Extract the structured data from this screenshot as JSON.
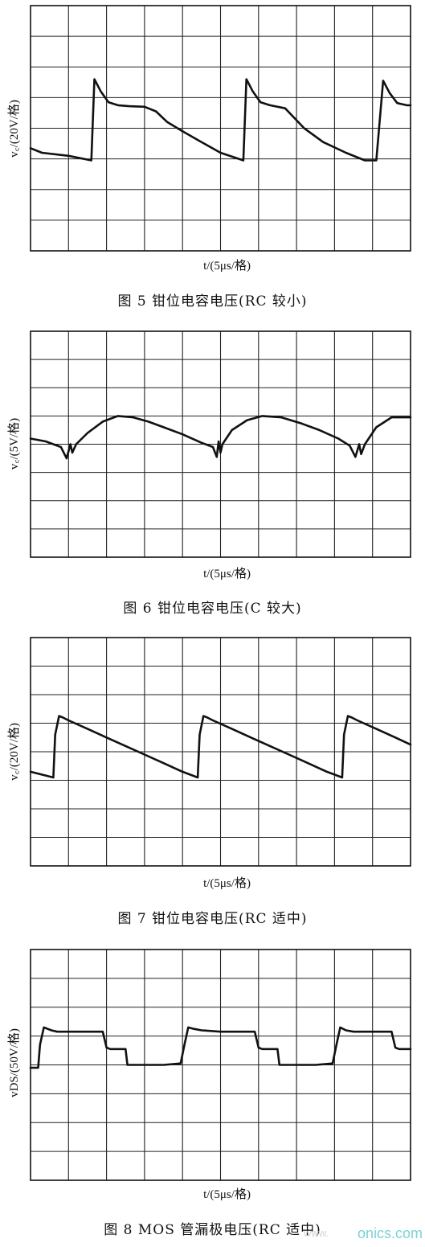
{
  "chart_data": [
    {
      "type": "line",
      "ylabel": "v꜀/(20V/格)",
      "xlabel": "t/(5μs/格)",
      "caption": "图 5    钳位电容电压(RC 较小)",
      "grid_divisions": {
        "x": 10,
        "y": 8
      },
      "series": [
        {
          "x": [
            0.0,
            0.3,
            1.0,
            1.6,
            1.68,
            1.85,
            2.05,
            2.3,
            2.6,
            3.0,
            3.3,
            3.6,
            4.0,
            4.5,
            5.0,
            5.6,
            5.68,
            5.85,
            6.05,
            6.3,
            6.7,
            7.2,
            7.7,
            8.3,
            8.8,
            9.1,
            9.28,
            9.45,
            9.65,
            9.9,
            10.0
          ],
          "y": [
            3.35,
            3.2,
            3.1,
            2.95,
            5.6,
            5.2,
            4.85,
            4.75,
            4.72,
            4.7,
            4.55,
            4.2,
            3.9,
            3.55,
            3.2,
            2.95,
            5.6,
            5.2,
            4.85,
            4.75,
            4.65,
            4.0,
            3.55,
            3.2,
            2.95,
            2.95,
            5.55,
            5.15,
            4.82,
            4.75,
            4.75
          ]
        }
      ]
    },
    {
      "type": "line",
      "ylabel": "v꜀/(5V/格)",
      "xlabel": "t/(5μs/格)",
      "caption": "图 6    钳位电容电压(C 较大)",
      "grid_divisions": {
        "x": 10,
        "y": 8
      },
      "series": [
        {
          "x": [
            0.0,
            0.4,
            0.8,
            0.95,
            1.05,
            1.1,
            1.2,
            1.5,
            1.9,
            2.3,
            2.7,
            3.1,
            3.5,
            4.0,
            4.5,
            4.8,
            4.9,
            4.95,
            5.0,
            5.05,
            5.1,
            5.3,
            5.7,
            6.1,
            6.6,
            7.1,
            7.6,
            8.1,
            8.4,
            8.55,
            8.65,
            8.7,
            8.8,
            9.1,
            9.5,
            10.0
          ],
          "y": [
            4.2,
            4.1,
            3.9,
            3.5,
            4.0,
            3.7,
            4.0,
            4.4,
            4.8,
            5.0,
            4.95,
            4.8,
            4.6,
            4.35,
            4.05,
            3.9,
            3.55,
            4.1,
            3.7,
            4.0,
            4.1,
            4.5,
            4.85,
            5.0,
            4.95,
            4.75,
            4.5,
            4.2,
            3.95,
            3.55,
            4.0,
            3.65,
            4.0,
            4.6,
            4.95,
            4.95
          ]
        }
      ]
    },
    {
      "type": "line",
      "ylabel": "v꜀/(20V/格)",
      "xlabel": "t/(5μs/格)",
      "caption": "图 7    钳位电容电压(RC 适中)",
      "grid_divisions": {
        "x": 10,
        "y": 8
      },
      "series": [
        {
          "x": [
            0.0,
            0.6,
            0.65,
            0.75,
            0.85,
            1.0,
            1.5,
            2.0,
            2.5,
            3.0,
            3.5,
            4.0,
            4.4,
            4.45,
            4.55,
            4.65,
            4.8,
            5.3,
            5.8,
            6.3,
            6.8,
            7.3,
            7.8,
            8.2,
            8.25,
            8.35,
            8.45,
            8.6,
            9.1,
            9.6,
            10.0
          ],
          "y": [
            3.3,
            3.1,
            4.6,
            5.25,
            5.2,
            5.1,
            4.8,
            4.5,
            4.2,
            3.9,
            3.6,
            3.3,
            3.1,
            4.6,
            5.25,
            5.2,
            5.1,
            4.8,
            4.5,
            4.2,
            3.9,
            3.6,
            3.3,
            3.1,
            4.6,
            5.25,
            5.2,
            5.1,
            4.8,
            4.5,
            4.25
          ]
        }
      ]
    },
    {
      "type": "line",
      "ylabel": "vDS/(50V/格)",
      "xlabel": "t/(5μs/格)",
      "caption": "图 8    MOS 管漏极电压(RC 适中)",
      "grid_divisions": {
        "x": 10,
        "y": 8
      },
      "series": [
        {
          "x": [
            0.0,
            0.2,
            0.25,
            0.35,
            0.45,
            0.55,
            0.7,
            1.0,
            1.5,
            1.9,
            2.0,
            2.1,
            2.5,
            2.55,
            3.0,
            3.5,
            3.95,
            4.05,
            4.15,
            4.3,
            4.5,
            5.0,
            5.5,
            5.9,
            6.0,
            6.1,
            6.5,
            6.55,
            7.0,
            7.5,
            7.95,
            8.05,
            8.15,
            8.3,
            8.5,
            9.0,
            9.5,
            9.6,
            9.7,
            10.0
          ],
          "y": [
            3.9,
            3.9,
            4.7,
            5.3,
            5.25,
            5.2,
            5.15,
            5.15,
            5.15,
            5.15,
            4.6,
            4.55,
            4.55,
            4.0,
            4.0,
            4.0,
            4.05,
            4.7,
            5.3,
            5.25,
            5.2,
            5.15,
            5.15,
            5.15,
            4.6,
            4.55,
            4.55,
            4.0,
            4.0,
            4.0,
            4.05,
            4.7,
            5.3,
            5.2,
            5.15,
            5.15,
            5.15,
            4.6,
            4.55,
            4.55
          ]
        }
      ]
    }
  ],
  "watermark": {
    "left": "www.",
    "right": "onics.com"
  }
}
